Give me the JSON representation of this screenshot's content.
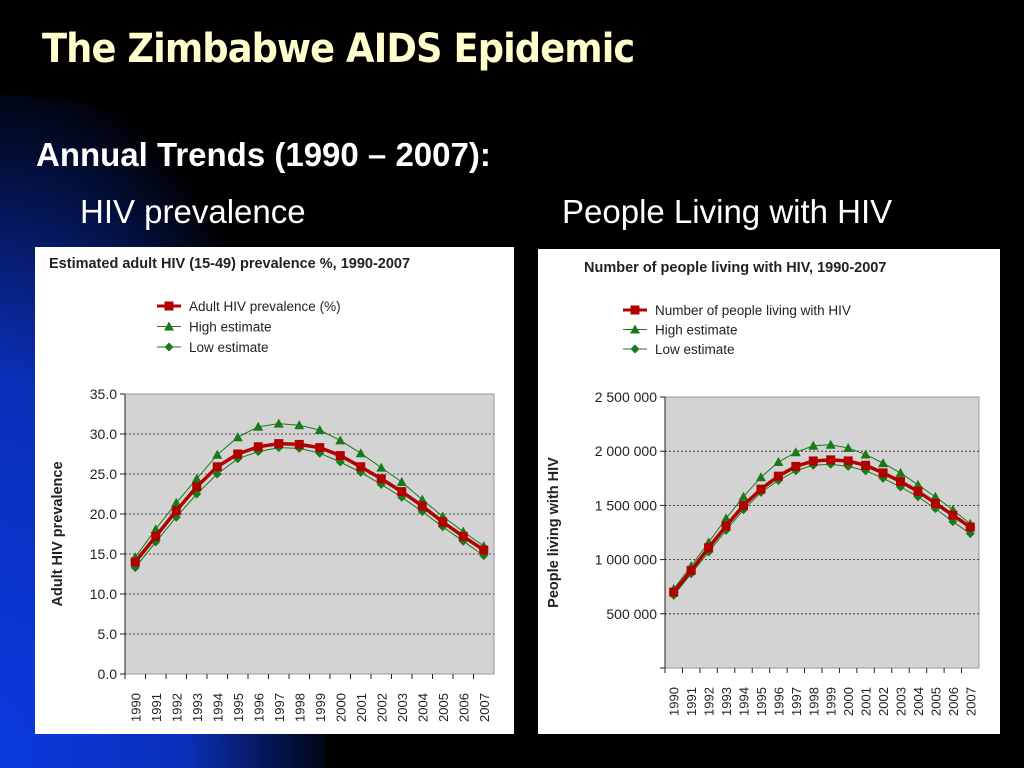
{
  "slide": {
    "title": "The Zimbabwe AIDS Epidemic",
    "subtitle": "Annual Trends (1990 – 2007):",
    "left_heading": "HIV prevalence",
    "right_heading": "People Living with HIV"
  },
  "colors": {
    "background": "#000000",
    "accent_blue": "#0033cc",
    "title_text": "#ffffcc",
    "main_series": "#b00000",
    "estimate_series": "#1a7a1a",
    "plot_area": "#d3d3d3"
  },
  "chart_data": [
    {
      "type": "line",
      "title": "Estimated adult HIV (15-49) prevalence %, 1990-2007",
      "xlabel": "",
      "ylabel": "Adult HIV prevalence",
      "categories": [
        "1990",
        "1991",
        "1992",
        "1993",
        "1994",
        "1995",
        "1996",
        "1997",
        "1998",
        "1999",
        "2000",
        "2001",
        "2002",
        "2003",
        "2004",
        "2005",
        "2006",
        "2007"
      ],
      "ylim": [
        0,
        35
      ],
      "yticks": [
        "0.0",
        "5.0",
        "10.0",
        "15.0",
        "20.0",
        "25.0",
        "30.0",
        "35.0"
      ],
      "ytick_values": [
        0,
        5,
        10,
        15,
        20,
        25,
        30,
        35
      ],
      "grid": true,
      "legend_position": "top-left",
      "series": [
        {
          "name": "Adult HIV prevalence (%)",
          "marker": "square",
          "values": [
            14.0,
            17.2,
            20.4,
            23.4,
            25.9,
            27.5,
            28.4,
            28.8,
            28.7,
            28.3,
            27.3,
            25.9,
            24.4,
            22.8,
            21.0,
            19.0,
            17.2,
            15.5
          ]
        },
        {
          "name": "High estimate",
          "marker": "triangle",
          "values": [
            14.6,
            18.1,
            21.4,
            24.4,
            27.4,
            29.6,
            30.9,
            31.3,
            31.1,
            30.5,
            29.2,
            27.6,
            25.8,
            24.0,
            21.8,
            19.7,
            17.8,
            16.0
          ]
        },
        {
          "name": "Low estimate",
          "marker": "diamond",
          "values": [
            13.3,
            16.5,
            19.6,
            22.5,
            25.0,
            26.9,
            27.8,
            28.3,
            28.2,
            27.6,
            26.5,
            25.2,
            23.7,
            22.1,
            20.3,
            18.4,
            16.6,
            14.8
          ]
        }
      ]
    },
    {
      "type": "line",
      "title": "Number of people living with HIV, 1990-2007",
      "xlabel": "",
      "ylabel": "People living with HIV",
      "categories": [
        "1990",
        "1991",
        "1992",
        "1993",
        "1994",
        "1995",
        "1996",
        "1997",
        "1998",
        "1999",
        "2000",
        "2001",
        "2002",
        "2003",
        "2004",
        "2005",
        "2006",
        "2007"
      ],
      "ylim": [
        0,
        2500000
      ],
      "yticks": [
        "",
        "500 000",
        "1 000 000",
        "1 500 000",
        "2 000 000",
        "2 500 000"
      ],
      "ytick_values": [
        0,
        500000,
        1000000,
        1500000,
        2000000,
        2500000
      ],
      "grid": true,
      "legend_position": "top-left",
      "series": [
        {
          "name": "Number of people living with HIV",
          "marker": "square",
          "values": [
            700000,
            900000,
            1110000,
            1310000,
            1500000,
            1650000,
            1770000,
            1860000,
            1910000,
            1920000,
            1910000,
            1870000,
            1800000,
            1720000,
            1630000,
            1520000,
            1410000,
            1300000
          ]
        },
        {
          "name": "High estimate",
          "marker": "triangle",
          "values": [
            730000,
            940000,
            1160000,
            1380000,
            1580000,
            1760000,
            1900000,
            1990000,
            2050000,
            2060000,
            2030000,
            1970000,
            1890000,
            1800000,
            1690000,
            1580000,
            1460000,
            1330000
          ]
        },
        {
          "name": "Low estimate",
          "marker": "diamond",
          "values": [
            670000,
            870000,
            1070000,
            1270000,
            1460000,
            1620000,
            1730000,
            1820000,
            1870000,
            1880000,
            1860000,
            1820000,
            1750000,
            1670000,
            1580000,
            1470000,
            1350000,
            1240000
          ]
        }
      ]
    }
  ]
}
